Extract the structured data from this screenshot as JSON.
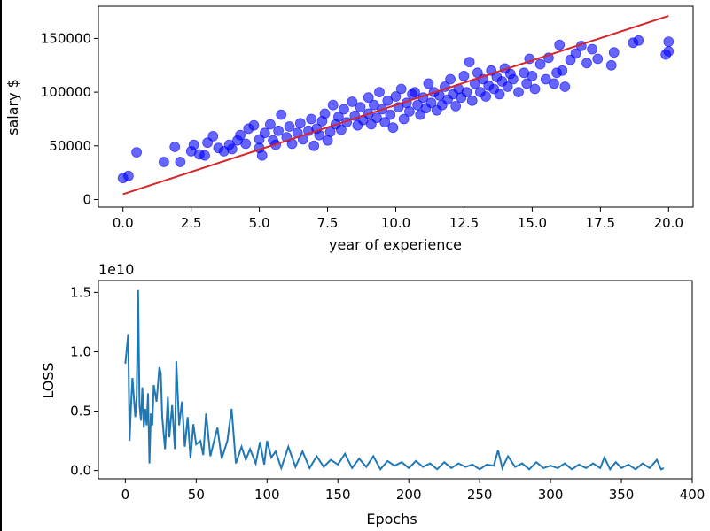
{
  "chart_data": [
    {
      "type": "scatter",
      "xlabel": "year of experience",
      "ylabel": "salary $",
      "xlim": [
        -0.9,
        20.9
      ],
      "ylim": [
        -7000,
        180000
      ],
      "xticks": [
        0.0,
        2.5,
        5.0,
        7.5,
        10.0,
        12.5,
        15.0,
        17.5,
        20.0
      ],
      "xtick_labels": [
        "0.0",
        "2.5",
        "5.0",
        "7.5",
        "10.0",
        "12.5",
        "15.0",
        "17.5",
        "20.0"
      ],
      "yticks": [
        0,
        50000,
        100000,
        150000
      ],
      "ytick_labels": [
        "0",
        "50000",
        "100000",
        "150000"
      ],
      "point_color": "#0000ff",
      "fit_line_color": "#d62728",
      "fit_line": [
        [
          0.0,
          5000
        ],
        [
          20.0,
          171000
        ]
      ],
      "points": [
        [
          0.0,
          20000
        ],
        [
          0.2,
          22000
        ],
        [
          0.5,
          44000
        ],
        [
          1.5,
          35000
        ],
        [
          1.9,
          49000
        ],
        [
          2.1,
          35000
        ],
        [
          2.5,
          45000
        ],
        [
          2.6,
          51000
        ],
        [
          2.8,
          42000
        ],
        [
          3.0,
          41000
        ],
        [
          3.1,
          53000
        ],
        [
          3.3,
          59000
        ],
        [
          3.5,
          48000
        ],
        [
          3.7,
          45000
        ],
        [
          3.9,
          51000
        ],
        [
          4.0,
          47000
        ],
        [
          4.2,
          55000
        ],
        [
          4.3,
          60000
        ],
        [
          4.5,
          52000
        ],
        [
          4.6,
          66000
        ],
        [
          4.8,
          69000
        ],
        [
          5.0,
          48000
        ],
        [
          5.0,
          56000
        ],
        [
          5.1,
          41000
        ],
        [
          5.2,
          62000
        ],
        [
          5.4,
          70000
        ],
        [
          5.5,
          55000
        ],
        [
          5.6,
          51000
        ],
        [
          5.7,
          64000
        ],
        [
          5.8,
          79000
        ],
        [
          6.0,
          58000
        ],
        [
          6.1,
          68000
        ],
        [
          6.2,
          52000
        ],
        [
          6.4,
          62000
        ],
        [
          6.5,
          71000
        ],
        [
          6.6,
          56000
        ],
        [
          6.8,
          64000
        ],
        [
          6.9,
          75000
        ],
        [
          7.0,
          50000
        ],
        [
          7.1,
          66000
        ],
        [
          7.2,
          60000
        ],
        [
          7.3,
          73000
        ],
        [
          7.4,
          80000
        ],
        [
          7.5,
          55000
        ],
        [
          7.6,
          63000
        ],
        [
          7.7,
          88000
        ],
        [
          7.8,
          70000
        ],
        [
          7.9,
          77000
        ],
        [
          8.0,
          65000
        ],
        [
          8.1,
          84000
        ],
        [
          8.2,
          72000
        ],
        [
          8.4,
          91000
        ],
        [
          8.5,
          78000
        ],
        [
          8.6,
          69000
        ],
        [
          8.7,
          86000
        ],
        [
          8.8,
          74000
        ],
        [
          9.0,
          95000
        ],
        [
          9.0,
          80000
        ],
        [
          9.1,
          70000
        ],
        [
          9.2,
          88000
        ],
        [
          9.3,
          76000
        ],
        [
          9.4,
          100000
        ],
        [
          9.5,
          84000
        ],
        [
          9.6,
          72000
        ],
        [
          9.7,
          92000
        ],
        [
          9.8,
          79000
        ],
        [
          9.9,
          67000
        ],
        [
          10.0,
          96000
        ],
        [
          10.1,
          86000
        ],
        [
          10.2,
          103000
        ],
        [
          10.3,
          75000
        ],
        [
          10.4,
          90000
        ],
        [
          10.5,
          82000
        ],
        [
          10.6,
          98000
        ],
        [
          10.7,
          100000
        ],
        [
          10.8,
          88000
        ],
        [
          10.9,
          79000
        ],
        [
          11.0,
          95000
        ],
        [
          11.1,
          85000
        ],
        [
          11.2,
          108000
        ],
        [
          11.3,
          90000
        ],
        [
          11.4,
          100000
        ],
        [
          11.5,
          83000
        ],
        [
          11.6,
          97000
        ],
        [
          11.7,
          88000
        ],
        [
          11.8,
          105000
        ],
        [
          11.9,
          93000
        ],
        [
          12.0,
          112000
        ],
        [
          12.1,
          98000
        ],
        [
          12.2,
          87000
        ],
        [
          12.3,
          103000
        ],
        [
          12.4,
          95000
        ],
        [
          12.5,
          115000
        ],
        [
          12.6,
          100000
        ],
        [
          12.7,
          128000
        ],
        [
          12.8,
          92000
        ],
        [
          12.9,
          108000
        ],
        [
          13.0,
          118000
        ],
        [
          13.1,
          100000
        ],
        [
          13.2,
          112000
        ],
        [
          13.3,
          96000
        ],
        [
          13.4,
          106000
        ],
        [
          13.5,
          120000
        ],
        [
          13.6,
          103000
        ],
        [
          13.7,
          114000
        ],
        [
          13.8,
          98000
        ],
        [
          13.9,
          110000
        ],
        [
          14.0,
          122000
        ],
        [
          14.1,
          105000
        ],
        [
          14.2,
          117000
        ],
        [
          14.3,
          112000
        ],
        [
          14.5,
          100000
        ],
        [
          14.7,
          118000
        ],
        [
          14.8,
          108000
        ],
        [
          14.9,
          131000
        ],
        [
          15.0,
          115000
        ],
        [
          15.1,
          103000
        ],
        [
          15.3,
          126000
        ],
        [
          15.5,
          112000
        ],
        [
          15.6,
          132000
        ],
        [
          15.8,
          108000
        ],
        [
          15.9,
          118000
        ],
        [
          16.0,
          144000
        ],
        [
          16.1,
          120000
        ],
        [
          16.2,
          105000
        ],
        [
          16.4,
          130000
        ],
        [
          16.6,
          136000
        ],
        [
          16.8,
          143000
        ],
        [
          17.0,
          127000
        ],
        [
          17.2,
          140000
        ],
        [
          17.4,
          131000
        ],
        [
          17.9,
          125000
        ],
        [
          18.0,
          137000
        ],
        [
          18.7,
          146000
        ],
        [
          18.9,
          148000
        ],
        [
          19.9,
          135000
        ],
        [
          20.0,
          138000
        ],
        [
          20.0,
          147000
        ]
      ]
    },
    {
      "type": "line",
      "xlabel": "Epochs",
      "ylabel": "LOSS",
      "offset_label": "1e10",
      "xlim": [
        -19,
        400
      ],
      "ylim": [
        -0.07,
        1.6
      ],
      "xticks": [
        0,
        50,
        100,
        150,
        200,
        250,
        300,
        350,
        400
      ],
      "xtick_labels": [
        "0",
        "50",
        "100",
        "150",
        "200",
        "250",
        "300",
        "350",
        "400"
      ],
      "yticks": [
        0.0,
        0.5,
        1.0,
        1.5
      ],
      "ytick_labels": [
        "0.0",
        "0.5",
        "1.0",
        "1.5"
      ],
      "line_color": "#1f77b4",
      "x": [
        0,
        2,
        3,
        4,
        5,
        7,
        8,
        9,
        10,
        11,
        12,
        13,
        14,
        15,
        16,
        17,
        18,
        19,
        20,
        22,
        24,
        25,
        26,
        28,
        30,
        31,
        33,
        35,
        36,
        38,
        40,
        42,
        44,
        46,
        48,
        50,
        53,
        55,
        57,
        60,
        62,
        65,
        68,
        72,
        75,
        78,
        82,
        85,
        88,
        92,
        95,
        98,
        100,
        103,
        106,
        110,
        115,
        120,
        125,
        130,
        135,
        140,
        145,
        150,
        155,
        160,
        165,
        170,
        175,
        180,
        185,
        190,
        195,
        200,
        205,
        210,
        215,
        220,
        225,
        230,
        235,
        240,
        245,
        250,
        255,
        260,
        263,
        266,
        270,
        275,
        280,
        285,
        290,
        295,
        300,
        305,
        310,
        315,
        320,
        325,
        330,
        335,
        338,
        342,
        346,
        350,
        355,
        360,
        365,
        370,
        375,
        378,
        380
      ],
      "y": [
        0.9,
        1.15,
        0.25,
        0.55,
        0.78,
        0.45,
        0.62,
        1.52,
        0.55,
        0.42,
        0.7,
        0.36,
        0.52,
        0.38,
        0.65,
        0.06,
        0.48,
        0.38,
        0.72,
        0.58,
        0.87,
        0.82,
        0.45,
        0.18,
        0.62,
        0.28,
        0.55,
        0.18,
        0.92,
        0.38,
        0.58,
        0.2,
        0.45,
        0.1,
        0.39,
        0.22,
        0.25,
        0.13,
        0.48,
        0.12,
        0.22,
        0.36,
        0.1,
        0.25,
        0.52,
        0.06,
        0.2,
        0.09,
        0.18,
        0.06,
        0.24,
        0.05,
        0.25,
        0.11,
        0.16,
        0.02,
        0.2,
        0.03,
        0.16,
        0.02,
        0.12,
        0.03,
        0.09,
        0.05,
        0.14,
        0.02,
        0.1,
        0.03,
        0.12,
        0.01,
        0.08,
        0.04,
        0.07,
        0.02,
        0.08,
        0.03,
        0.06,
        0.01,
        0.07,
        0.02,
        0.06,
        0.03,
        0.05,
        0.01,
        0.05,
        0.04,
        0.17,
        0.02,
        0.12,
        0.03,
        0.06,
        0.01,
        0.07,
        0.02,
        0.04,
        0.02,
        0.06,
        0.01,
        0.05,
        0.02,
        0.06,
        0.02,
        0.11,
        0.01,
        0.07,
        0.02,
        0.05,
        0.01,
        0.06,
        0.02,
        0.09,
        0.01,
        0.02
      ]
    }
  ]
}
